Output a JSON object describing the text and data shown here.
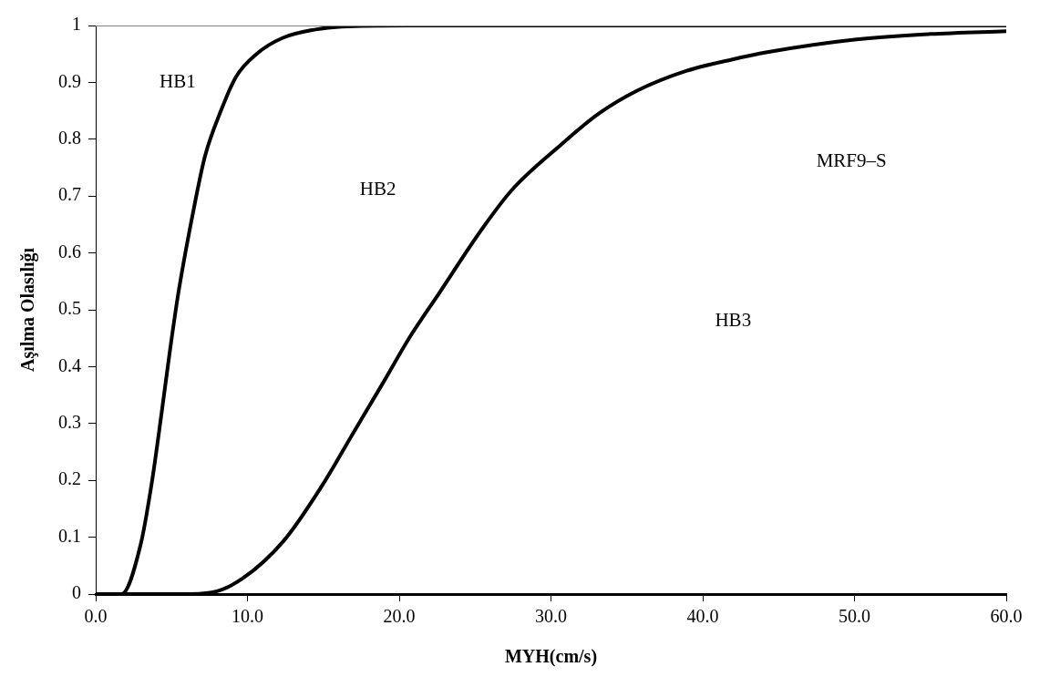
{
  "chart_data": {
    "type": "line",
    "xlabel": "MYH(cm/s)",
    "ylabel": "Aşılma Olasılığı",
    "xlim": [
      0,
      60
    ],
    "ylim": [
      0,
      1
    ],
    "xticks": [
      {
        "value": 0,
        "label": "0.0"
      },
      {
        "value": 10,
        "label": "10.0"
      },
      {
        "value": 20,
        "label": "20.0"
      },
      {
        "value": 30,
        "label": "30.0"
      },
      {
        "value": 40,
        "label": "40.0"
      },
      {
        "value": 50,
        "label": "50.0"
      },
      {
        "value": 60,
        "label": "60.0"
      }
    ],
    "yticks": [
      0,
      0.1,
      0.2,
      0.3,
      0.4,
      0.5,
      0.6,
      0.7,
      0.8,
      0.9,
      1
    ],
    "grid": false,
    "legend": false,
    "marker": "none",
    "line_style": "solid",
    "series": [
      {
        "color": "#000000",
        "x": [
          0,
          1.7,
          2.96,
          3.72,
          4.35,
          4.85,
          5.45,
          6.48,
          7.2,
          8.25,
          9.25,
          10.6,
          12.3,
          14.5,
          16.2,
          20.6,
          30,
          40,
          50,
          60
        ],
        "values": [
          0,
          0,
          0.087,
          0.2,
          0.32,
          0.42,
          0.53,
          0.68,
          0.77,
          0.85,
          0.91,
          0.95,
          0.978,
          0.993,
          0.998,
          1,
          1,
          1,
          1,
          1
        ]
      },
      {
        "color": "#000000",
        "x": [
          0,
          5.65,
          7.65,
          9.65,
          12.4,
          14.9,
          16.9,
          18.9,
          20.65,
          22.65,
          25.4,
          27.4,
          30.65,
          33.15,
          35.65,
          38.9,
          41.9,
          44.25,
          50,
          55,
          60
        ],
        "values": [
          0,
          0,
          0.003,
          0.027,
          0.094,
          0.19,
          0.28,
          0.37,
          0.45,
          0.53,
          0.64,
          0.71,
          0.79,
          0.845,
          0.885,
          0.92,
          0.94,
          0.953,
          0.975,
          0.985,
          0.99
        ]
      }
    ],
    "annotations": [
      "HB1",
      "HB2",
      "HB3",
      "MRF9–S"
    ]
  }
}
